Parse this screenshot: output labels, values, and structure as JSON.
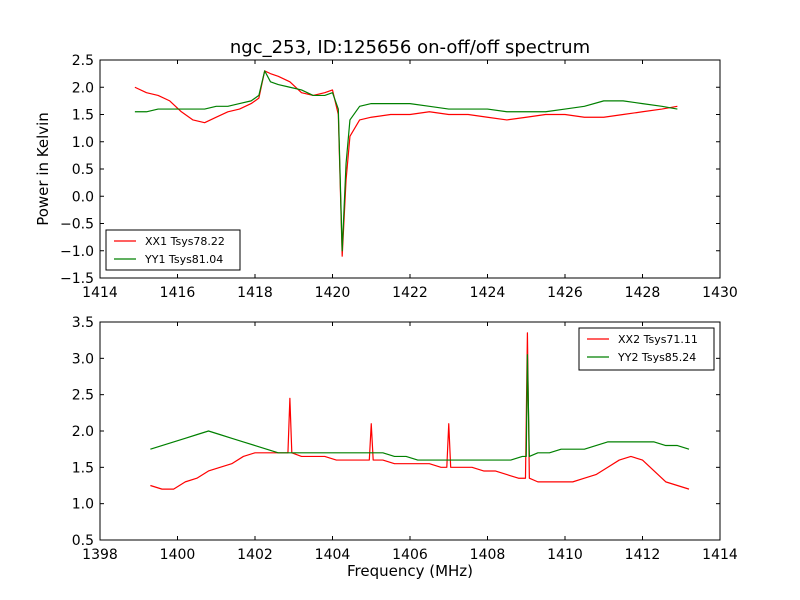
{
  "title": "ngc_253, ID:125656 on-off/off spectrum",
  "colors": {
    "xx": "#ff0000",
    "yy": "#008000"
  },
  "chart_data": [
    {
      "type": "line",
      "title": "ngc_253, ID:125656 on-off/off spectrum",
      "xlabel": "",
      "ylabel": "Power in Kelvin",
      "xlim": [
        1414,
        1430
      ],
      "ylim": [
        -1.5,
        2.5
      ],
      "xticks": [
        "1414",
        "1416",
        "1418",
        "1420",
        "1422",
        "1424",
        "1426",
        "1428",
        "1430"
      ],
      "yticks": [
        "-1.5",
        "-1.0",
        "-0.5",
        "0.0",
        "0.5",
        "1.0",
        "1.5",
        "2.0",
        "2.5"
      ],
      "grid": false,
      "legend_position": "lower-left",
      "series": [
        {
          "name": "XX1 Tsys78.22",
          "color": "#ff0000",
          "x": [
            1414.9,
            1415.2,
            1415.5,
            1415.8,
            1416.1,
            1416.4,
            1416.7,
            1417.0,
            1417.3,
            1417.6,
            1417.9,
            1418.1,
            1418.25,
            1418.4,
            1418.6,
            1418.9,
            1419.2,
            1419.5,
            1419.8,
            1420.0,
            1420.15,
            1420.25,
            1420.35,
            1420.45,
            1420.7,
            1421.0,
            1421.5,
            1422.0,
            1422.5,
            1423.0,
            1423.5,
            1424.0,
            1424.5,
            1425.0,
            1425.5,
            1426.0,
            1426.5,
            1427.0,
            1427.5,
            1428.0,
            1428.5,
            1428.9
          ],
          "y": [
            2.0,
            1.9,
            1.85,
            1.75,
            1.55,
            1.4,
            1.35,
            1.45,
            1.55,
            1.6,
            1.7,
            1.8,
            2.3,
            2.25,
            2.2,
            2.1,
            1.9,
            1.85,
            1.9,
            1.95,
            1.5,
            -1.1,
            0.3,
            1.1,
            1.4,
            1.45,
            1.5,
            1.5,
            1.55,
            1.5,
            1.5,
            1.45,
            1.4,
            1.45,
            1.5,
            1.5,
            1.45,
            1.45,
            1.5,
            1.55,
            1.6,
            1.65
          ]
        },
        {
          "name": "YY1 Tsys81.04",
          "color": "#008000",
          "x": [
            1414.9,
            1415.2,
            1415.5,
            1415.8,
            1416.1,
            1416.4,
            1416.7,
            1417.0,
            1417.3,
            1417.6,
            1417.9,
            1418.1,
            1418.25,
            1418.4,
            1418.6,
            1418.9,
            1419.2,
            1419.5,
            1419.8,
            1420.0,
            1420.15,
            1420.25,
            1420.35,
            1420.45,
            1420.7,
            1421.0,
            1421.5,
            1422.0,
            1422.5,
            1423.0,
            1423.5,
            1424.0,
            1424.5,
            1425.0,
            1425.5,
            1426.0,
            1426.5,
            1427.0,
            1427.5,
            1428.0,
            1428.5,
            1428.9
          ],
          "y": [
            1.55,
            1.55,
            1.6,
            1.6,
            1.6,
            1.6,
            1.6,
            1.65,
            1.65,
            1.7,
            1.75,
            1.85,
            2.3,
            2.1,
            2.05,
            2.0,
            1.95,
            1.85,
            1.85,
            1.9,
            1.6,
            -1.0,
            0.6,
            1.4,
            1.65,
            1.7,
            1.7,
            1.7,
            1.65,
            1.6,
            1.6,
            1.6,
            1.55,
            1.55,
            1.55,
            1.6,
            1.65,
            1.75,
            1.75,
            1.7,
            1.65,
            1.6
          ]
        }
      ]
    },
    {
      "type": "line",
      "title": "",
      "xlabel": "Frequency (MHz)",
      "ylabel": "",
      "xlim": [
        1398,
        1414
      ],
      "ylim": [
        0.5,
        3.5
      ],
      "xticks": [
        "1398",
        "1400",
        "1402",
        "1404",
        "1406",
        "1408",
        "1410",
        "1412",
        "1414"
      ],
      "yticks": [
        "0.5",
        "1.0",
        "1.5",
        "2.0",
        "2.5",
        "3.0",
        "3.5"
      ],
      "grid": false,
      "legend_position": "upper-right",
      "series": [
        {
          "name": "XX2 Tsys71.11",
          "color": "#ff0000",
          "x": [
            1399.3,
            1399.6,
            1399.9,
            1400.2,
            1400.5,
            1400.8,
            1401.1,
            1401.4,
            1401.7,
            1402.0,
            1402.3,
            1402.6,
            1402.85,
            1402.9,
            1402.95,
            1403.2,
            1403.5,
            1403.8,
            1404.1,
            1404.4,
            1404.7,
            1404.95,
            1405.0,
            1405.05,
            1405.3,
            1405.6,
            1405.9,
            1406.2,
            1406.5,
            1406.8,
            1406.95,
            1407.0,
            1407.05,
            1407.3,
            1407.6,
            1407.9,
            1408.2,
            1408.5,
            1408.8,
            1408.98,
            1409.03,
            1409.08,
            1409.3,
            1409.6,
            1409.9,
            1410.2,
            1410.5,
            1410.8,
            1411.1,
            1411.4,
            1411.7,
            1412.0,
            1412.3,
            1412.6,
            1412.9,
            1413.2
          ],
          "y": [
            1.25,
            1.2,
            1.2,
            1.3,
            1.35,
            1.45,
            1.5,
            1.55,
            1.65,
            1.7,
            1.7,
            1.7,
            1.7,
            2.45,
            1.7,
            1.65,
            1.65,
            1.65,
            1.6,
            1.6,
            1.6,
            1.6,
            2.1,
            1.6,
            1.6,
            1.55,
            1.55,
            1.55,
            1.55,
            1.5,
            1.5,
            2.1,
            1.5,
            1.5,
            1.5,
            1.45,
            1.45,
            1.4,
            1.35,
            1.35,
            3.35,
            1.35,
            1.3,
            1.3,
            1.3,
            1.3,
            1.35,
            1.4,
            1.5,
            1.6,
            1.65,
            1.6,
            1.45,
            1.3,
            1.25,
            1.2
          ]
        },
        {
          "name": "YY2 Tsys85.24",
          "color": "#008000",
          "x": [
            1399.3,
            1399.6,
            1399.9,
            1400.2,
            1400.5,
            1400.8,
            1401.1,
            1401.4,
            1401.7,
            1402.0,
            1402.3,
            1402.6,
            1402.9,
            1403.2,
            1403.5,
            1403.8,
            1404.1,
            1404.4,
            1404.7,
            1405.0,
            1405.3,
            1405.6,
            1405.9,
            1406.2,
            1406.5,
            1406.8,
            1407.1,
            1407.4,
            1407.7,
            1408.0,
            1408.3,
            1408.6,
            1408.9,
            1409.0,
            1409.03,
            1409.08,
            1409.3,
            1409.6,
            1409.9,
            1410.2,
            1410.5,
            1410.8,
            1411.1,
            1411.4,
            1411.7,
            1412.0,
            1412.3,
            1412.6,
            1412.9,
            1413.2
          ],
          "y": [
            1.75,
            1.8,
            1.85,
            1.9,
            1.95,
            2.0,
            1.95,
            1.9,
            1.85,
            1.8,
            1.75,
            1.7,
            1.7,
            1.7,
            1.7,
            1.7,
            1.7,
            1.7,
            1.7,
            1.7,
            1.7,
            1.65,
            1.65,
            1.6,
            1.6,
            1.6,
            1.6,
            1.6,
            1.6,
            1.6,
            1.6,
            1.6,
            1.65,
            1.65,
            3.05,
            1.65,
            1.7,
            1.7,
            1.75,
            1.75,
            1.75,
            1.8,
            1.85,
            1.85,
            1.85,
            1.85,
            1.85,
            1.8,
            1.8,
            1.75
          ]
        }
      ]
    }
  ]
}
